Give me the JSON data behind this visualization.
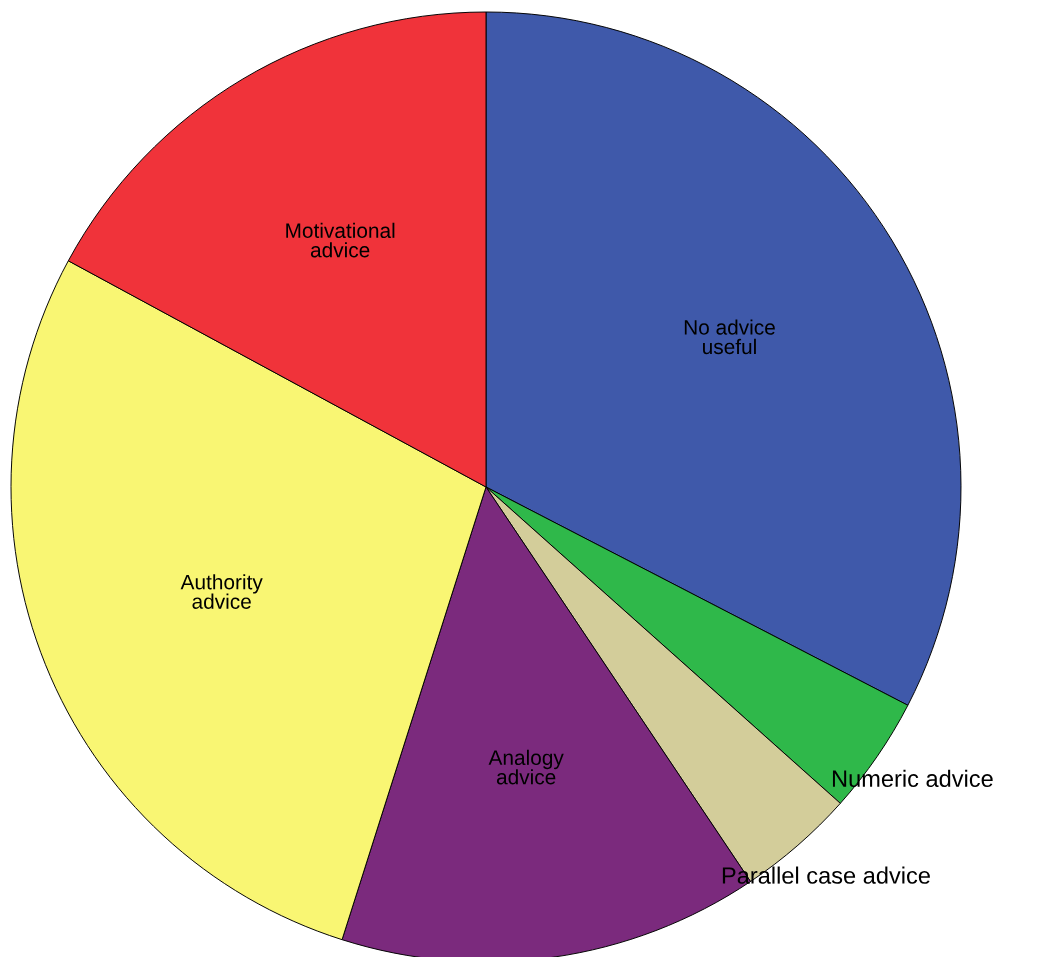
{
  "chart_data": {
    "type": "pie",
    "categories": [
      "No advice\nuseful",
      "Numeric advice",
      "Parallel case advice",
      "Analogy\nadvice",
      "Authority\nadvice",
      "Motivational\nadvice"
    ],
    "values": [
      32.6,
      4.0,
      4.0,
      14.3,
      28.0,
      17.1
    ],
    "colors": [
      "#3f59aa",
      "#2fb84a",
      "#d3cd9a",
      "#7b2a7d",
      "#f9f673",
      "#f0333a"
    ],
    "legend": false
  }
}
